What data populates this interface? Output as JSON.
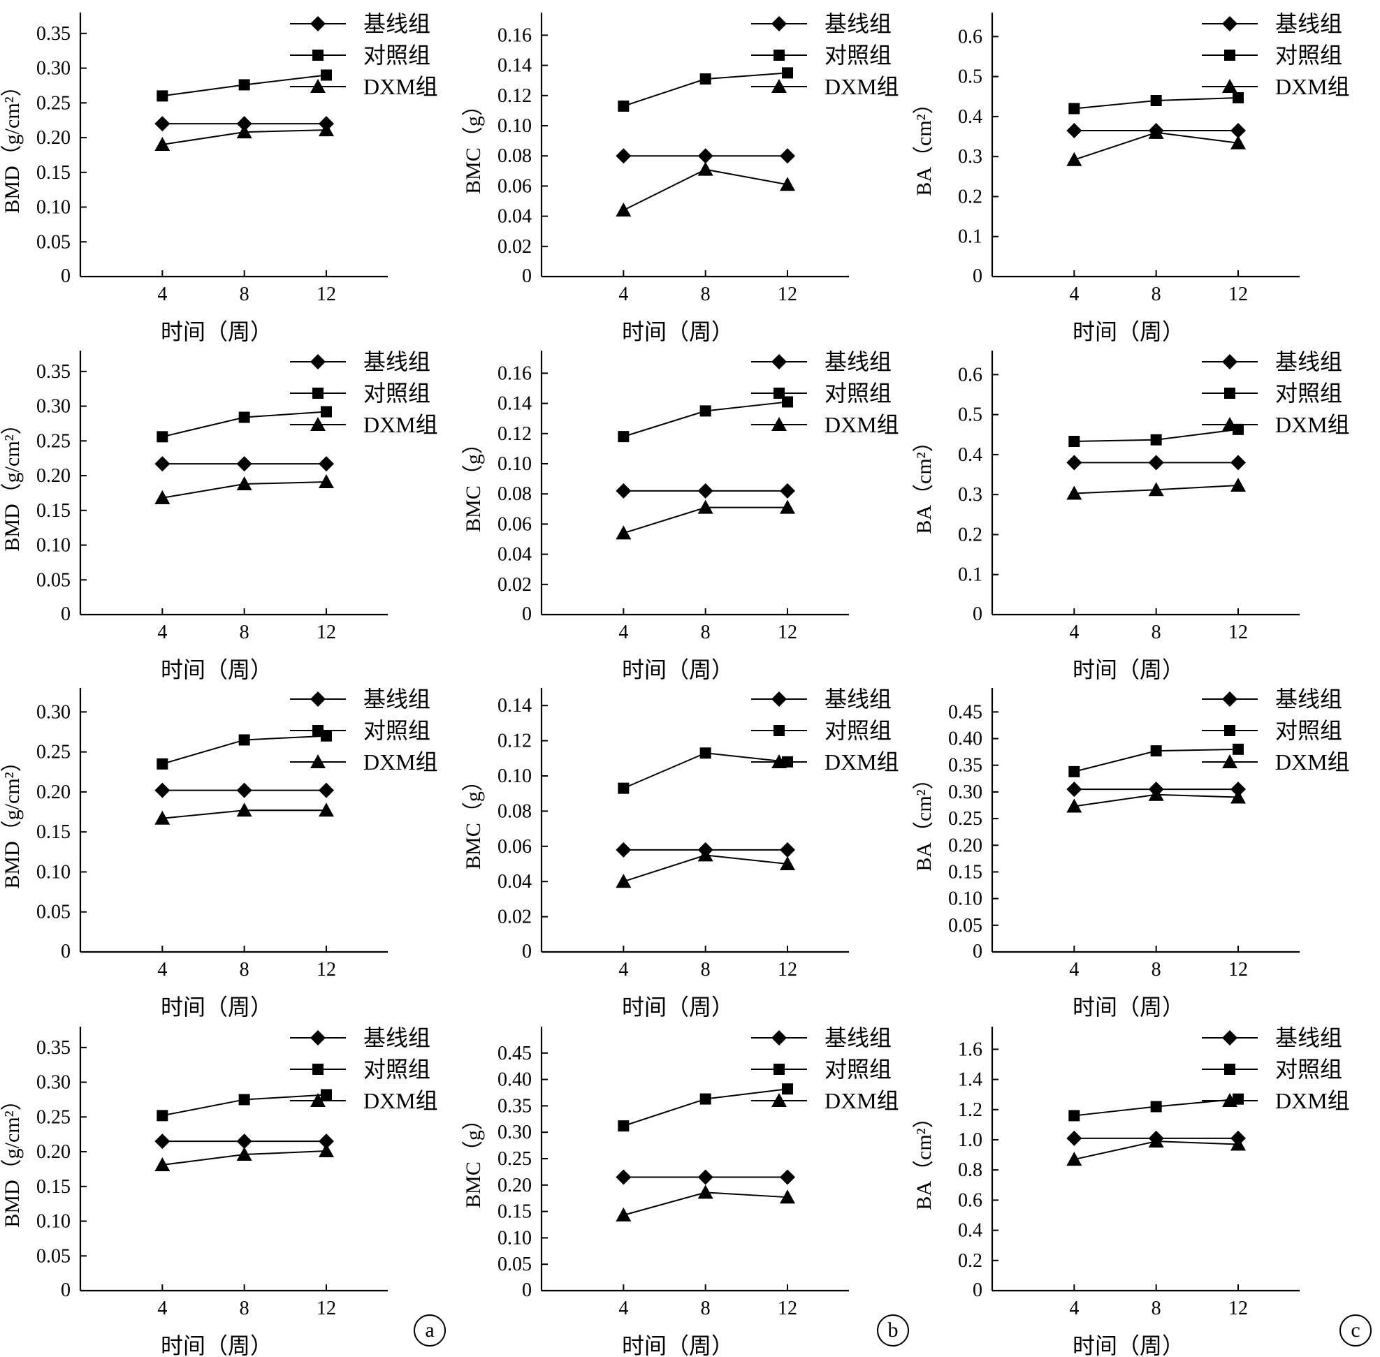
{
  "chart_data": [
    {
      "type": "line",
      "panel": "a",
      "row": 1,
      "ylabel": "BMD（g/cm²）",
      "xlabel": "时间（周）",
      "x": [
        4,
        8,
        12
      ],
      "xlim": [
        0,
        15
      ],
      "ylim": [
        0,
        0.38
      ],
      "yticks": [
        0.05,
        0.1,
        0.15,
        0.2,
        0.25,
        0.3,
        0.35
      ],
      "legend": "top-right",
      "series": [
        {
          "name": "基线组",
          "marker": "diamond",
          "values": [
            0.22,
            0.22,
            0.22
          ]
        },
        {
          "name": "对照组",
          "marker": "square",
          "values": [
            0.26,
            0.276,
            0.29
          ]
        },
        {
          "name": "DXM组",
          "marker": "triangle",
          "values": [
            0.19,
            0.208,
            0.211
          ]
        }
      ]
    },
    {
      "type": "line",
      "panel": "b",
      "row": 1,
      "ylabel": "BMC（g）",
      "xlabel": "时间（周）",
      "x": [
        4,
        8,
        12
      ],
      "xlim": [
        0,
        15
      ],
      "ylim": [
        0,
        0.175
      ],
      "yticks": [
        0.02,
        0.04,
        0.06,
        0.08,
        0.1,
        0.12,
        0.14,
        0.16
      ],
      "legend": "top-right",
      "series": [
        {
          "name": "基线组",
          "marker": "diamond",
          "values": [
            0.08,
            0.08,
            0.08
          ]
        },
        {
          "name": "对照组",
          "marker": "square",
          "values": [
            0.113,
            0.131,
            0.135
          ]
        },
        {
          "name": "DXM组",
          "marker": "triangle",
          "values": [
            0.044,
            0.071,
            0.061
          ]
        }
      ]
    },
    {
      "type": "line",
      "panel": "c",
      "row": 1,
      "ylabel": "BA（cm²）",
      "xlabel": "时间（周）",
      "x": [
        4,
        8,
        12
      ],
      "xlim": [
        0,
        15
      ],
      "ylim": [
        0,
        0.66
      ],
      "yticks": [
        0.1,
        0.2,
        0.3,
        0.4,
        0.5,
        0.6
      ],
      "legend": "top-right",
      "series": [
        {
          "name": "基线组",
          "marker": "diamond",
          "values": [
            0.365,
            0.365,
            0.365
          ]
        },
        {
          "name": "对照组",
          "marker": "square",
          "values": [
            0.42,
            0.44,
            0.447
          ]
        },
        {
          "name": "DXM组",
          "marker": "triangle",
          "values": [
            0.292,
            0.36,
            0.334
          ]
        }
      ]
    },
    {
      "type": "line",
      "panel": "a",
      "row": 2,
      "ylabel": "BMD（g/cm²）",
      "xlabel": "时间（周）",
      "x": [
        4,
        8,
        12
      ],
      "xlim": [
        0,
        15
      ],
      "ylim": [
        0,
        0.38
      ],
      "yticks": [
        0.05,
        0.1,
        0.15,
        0.2,
        0.25,
        0.3,
        0.35
      ],
      "legend": "top-right",
      "series": [
        {
          "name": "基线组",
          "marker": "diamond",
          "values": [
            0.217,
            0.217,
            0.217
          ]
        },
        {
          "name": "对照组",
          "marker": "square",
          "values": [
            0.256,
            0.284,
            0.292
          ]
        },
        {
          "name": "DXM组",
          "marker": "triangle",
          "values": [
            0.168,
            0.188,
            0.191
          ]
        }
      ]
    },
    {
      "type": "line",
      "panel": "b",
      "row": 2,
      "ylabel": "BMC（g）",
      "xlabel": "时间（周）",
      "x": [
        4,
        8,
        12
      ],
      "xlim": [
        0,
        15
      ],
      "ylim": [
        0,
        0.175
      ],
      "yticks": [
        0.02,
        0.04,
        0.06,
        0.08,
        0.1,
        0.12,
        0.14,
        0.16
      ],
      "legend": "top-right",
      "series": [
        {
          "name": "基线组",
          "marker": "diamond",
          "values": [
            0.082,
            0.082,
            0.082
          ]
        },
        {
          "name": "对照组",
          "marker": "square",
          "values": [
            0.118,
            0.135,
            0.141
          ]
        },
        {
          "name": "DXM组",
          "marker": "triangle",
          "values": [
            0.054,
            0.071,
            0.071
          ]
        }
      ]
    },
    {
      "type": "line",
      "panel": "c",
      "row": 2,
      "ylabel": "BA（cm²）",
      "xlabel": "时间（周）",
      "x": [
        4,
        8,
        12
      ],
      "xlim": [
        0,
        15
      ],
      "ylim": [
        0,
        0.66
      ],
      "yticks": [
        0.1,
        0.2,
        0.3,
        0.4,
        0.5,
        0.6
      ],
      "legend": "top-right",
      "series": [
        {
          "name": "基线组",
          "marker": "diamond",
          "values": [
            0.38,
            0.38,
            0.38
          ]
        },
        {
          "name": "对照组",
          "marker": "square",
          "values": [
            0.433,
            0.437,
            0.463
          ]
        },
        {
          "name": "DXM组",
          "marker": "triangle",
          "values": [
            0.303,
            0.312,
            0.323
          ]
        }
      ]
    },
    {
      "type": "line",
      "panel": "a",
      "row": 3,
      "ylabel": "BMD（g/cm²）",
      "xlabel": "时间（周）",
      "x": [
        4,
        8,
        12
      ],
      "xlim": [
        0,
        15
      ],
      "ylim": [
        0,
        0.33
      ],
      "yticks": [
        0.05,
        0.1,
        0.15,
        0.2,
        0.25,
        0.3
      ],
      "legend": "top-right",
      "series": [
        {
          "name": "基线组",
          "marker": "diamond",
          "values": [
            0.202,
            0.202,
            0.202
          ]
        },
        {
          "name": "对照组",
          "marker": "square",
          "values": [
            0.235,
            0.265,
            0.27
          ]
        },
        {
          "name": "DXM组",
          "marker": "triangle",
          "values": [
            0.167,
            0.177,
            0.177
          ]
        }
      ]
    },
    {
      "type": "line",
      "panel": "b",
      "row": 3,
      "ylabel": "BMC（g）",
      "xlabel": "时间（周）",
      "x": [
        4,
        8,
        12
      ],
      "xlim": [
        0,
        15
      ],
      "ylim": [
        0,
        0.15
      ],
      "yticks": [
        0.02,
        0.04,
        0.06,
        0.08,
        0.1,
        0.12,
        0.14
      ],
      "legend": "top-right",
      "series": [
        {
          "name": "基线组",
          "marker": "diamond",
          "values": [
            0.058,
            0.058,
            0.058
          ]
        },
        {
          "name": "对照组",
          "marker": "square",
          "values": [
            0.093,
            0.113,
            0.108
          ]
        },
        {
          "name": "DXM组",
          "marker": "triangle",
          "values": [
            0.04,
            0.055,
            0.05
          ]
        }
      ]
    },
    {
      "type": "line",
      "panel": "c",
      "row": 3,
      "ylabel": "BA（cm²）",
      "xlabel": "时间（周）",
      "x": [
        4,
        8,
        12
      ],
      "xlim": [
        0,
        15
      ],
      "ylim": [
        0,
        0.495
      ],
      "yticks": [
        0.05,
        0.1,
        0.15,
        0.2,
        0.25,
        0.3,
        0.35,
        0.4,
        0.45
      ],
      "legend": "top-right",
      "series": [
        {
          "name": "基线组",
          "marker": "diamond",
          "values": [
            0.305,
            0.305,
            0.305
          ]
        },
        {
          "name": "对照组",
          "marker": "square",
          "values": [
            0.338,
            0.377,
            0.38
          ]
        },
        {
          "name": "DXM组",
          "marker": "triangle",
          "values": [
            0.273,
            0.295,
            0.29
          ]
        }
      ]
    },
    {
      "type": "line",
      "panel": "a",
      "row": 4,
      "ylabel": "BMD（g/cm²）",
      "xlabel": "时间（周）",
      "x": [
        4,
        8,
        12
      ],
      "xlim": [
        0,
        15
      ],
      "ylim": [
        0,
        0.38
      ],
      "yticks": [
        0.05,
        0.1,
        0.15,
        0.2,
        0.25,
        0.3,
        0.35
      ],
      "legend": "top-right",
      "series": [
        {
          "name": "基线组",
          "marker": "diamond",
          "values": [
            0.215,
            0.215,
            0.215
          ]
        },
        {
          "name": "对照组",
          "marker": "square",
          "values": [
            0.252,
            0.275,
            0.282
          ]
        },
        {
          "name": "DXM组",
          "marker": "triangle",
          "values": [
            0.181,
            0.196,
            0.201
          ]
        }
      ]
    },
    {
      "type": "line",
      "panel": "b",
      "row": 4,
      "ylabel": "BMC（g）",
      "xlabel": "时间（周）",
      "x": [
        4,
        8,
        12
      ],
      "xlim": [
        0,
        15
      ],
      "ylim": [
        0,
        0.5
      ],
      "yticks": [
        0.05,
        0.1,
        0.15,
        0.2,
        0.25,
        0.3,
        0.35,
        0.4,
        0.45
      ],
      "legend": "top-right",
      "series": [
        {
          "name": "基线组",
          "marker": "diamond",
          "values": [
            0.215,
            0.215,
            0.215
          ]
        },
        {
          "name": "对照组",
          "marker": "square",
          "values": [
            0.312,
            0.363,
            0.382
          ]
        },
        {
          "name": "DXM组",
          "marker": "triangle",
          "values": [
            0.143,
            0.186,
            0.177
          ]
        }
      ]
    },
    {
      "type": "line",
      "panel": "c",
      "row": 4,
      "ylabel": "BA（cm²）",
      "xlabel": "时间（周）",
      "x": [
        4,
        8,
        12
      ],
      "xlim": [
        0,
        15
      ],
      "ylim": [
        0,
        1.75
      ],
      "yticks": [
        0.2,
        0.4,
        0.6,
        0.8,
        1.0,
        1.2,
        1.4,
        1.6
      ],
      "legend": "top-right",
      "series": [
        {
          "name": "基线组",
          "marker": "diamond",
          "values": [
            1.01,
            1.01,
            1.01
          ]
        },
        {
          "name": "对照组",
          "marker": "square",
          "values": [
            1.16,
            1.22,
            1.27
          ]
        },
        {
          "name": "DXM组",
          "marker": "triangle",
          "values": [
            0.87,
            0.99,
            0.97
          ]
        }
      ]
    }
  ],
  "panel_labels": [
    "a",
    "b",
    "c"
  ]
}
